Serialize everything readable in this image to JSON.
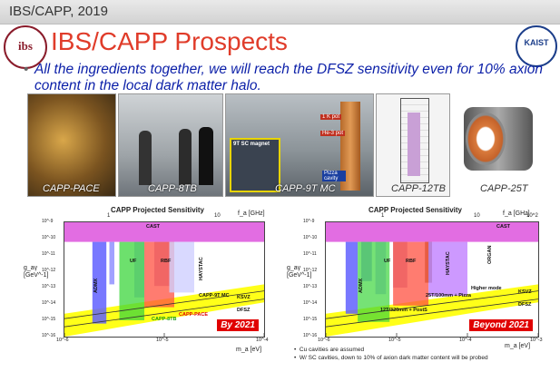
{
  "header": {
    "label": "IBS/CAPP, 2019"
  },
  "logos": {
    "left": "ibs",
    "right": "KAIST"
  },
  "title": "IBS/CAPP Prospects",
  "bullet": "All the ingredients together, we will reach the DFSZ sensitivity even for 10% axion content in the local dark matter halo.",
  "photos": [
    {
      "caption": "CAPP-PACE"
    },
    {
      "caption": "CAPP-8TB"
    },
    {
      "caption": "CAPP-9T MC",
      "labels": [
        "1 K pot",
        "He-3 pot",
        "9T SC magnet",
        "Pizza cavity"
      ]
    },
    {
      "caption": "CAPP-12TB"
    },
    {
      "caption": "CAPP-25T"
    }
  ],
  "chart_data": [
    {
      "type": "area",
      "title": "CAPP Projected Sensitivity",
      "x_axis_label": "m_a [eV]",
      "y_axis_label": "g_aγ [GeV^-1]",
      "top_axis_label": "f_a [GHz]",
      "xscale": "log",
      "yscale": "log",
      "xlim": [
        1e-06,
        0.0001
      ],
      "ylim": [
        1e-16,
        1e-09
      ],
      "x_ticks": [
        "10^-6",
        "10^-5",
        "10^-4"
      ],
      "top_ticks": [
        "1",
        "10"
      ],
      "y_ticks": [
        "10^-9",
        "10^-10",
        "10^-11",
        "10^-12",
        "10^-13",
        "10^-14",
        "10^-15",
        "10^-16"
      ],
      "region_labels": [
        "CAST",
        "ADMX",
        "UF",
        "RBF",
        "HAYSTAC",
        "CAPP-9T MC",
        "CAPP-PACE",
        "CAPP-8TB",
        "KSVZ",
        "DFSZ"
      ],
      "banner": "By 2021"
    },
    {
      "type": "area",
      "title": "CAPP Projected Sensitivity",
      "x_axis_label": "m_a [eV]",
      "y_axis_label": "g_aγ [GeV^-1]",
      "top_axis_label": "f_a [GHz]",
      "xscale": "log",
      "yscale": "log",
      "xlim": [
        1e-06,
        0.001
      ],
      "ylim": [
        1e-16,
        1e-09
      ],
      "x_ticks": [
        "10^-6",
        "10^-5",
        "10^-4",
        "10^-3"
      ],
      "top_ticks": [
        "1",
        "10",
        "10^2"
      ],
      "y_ticks": [
        "10^-9",
        "10^-10",
        "10^-11",
        "10^-12",
        "10^-13",
        "10^-14",
        "10^-15",
        "10^-16"
      ],
      "region_labels": [
        "CAST",
        "ADMX",
        "UF",
        "RBF",
        "HAYSTAC",
        "ORGAN",
        "12T/320mm + PostS",
        "25T/100mm + Pizza",
        "Higher mode",
        "KSVZ",
        "DFSZ"
      ],
      "banner": "Beyond 2021"
    }
  ],
  "notes": [
    "Cu cavities are assumed",
    "W/ SC cavities, down to 10% of axion dark matter content will be probed"
  ]
}
